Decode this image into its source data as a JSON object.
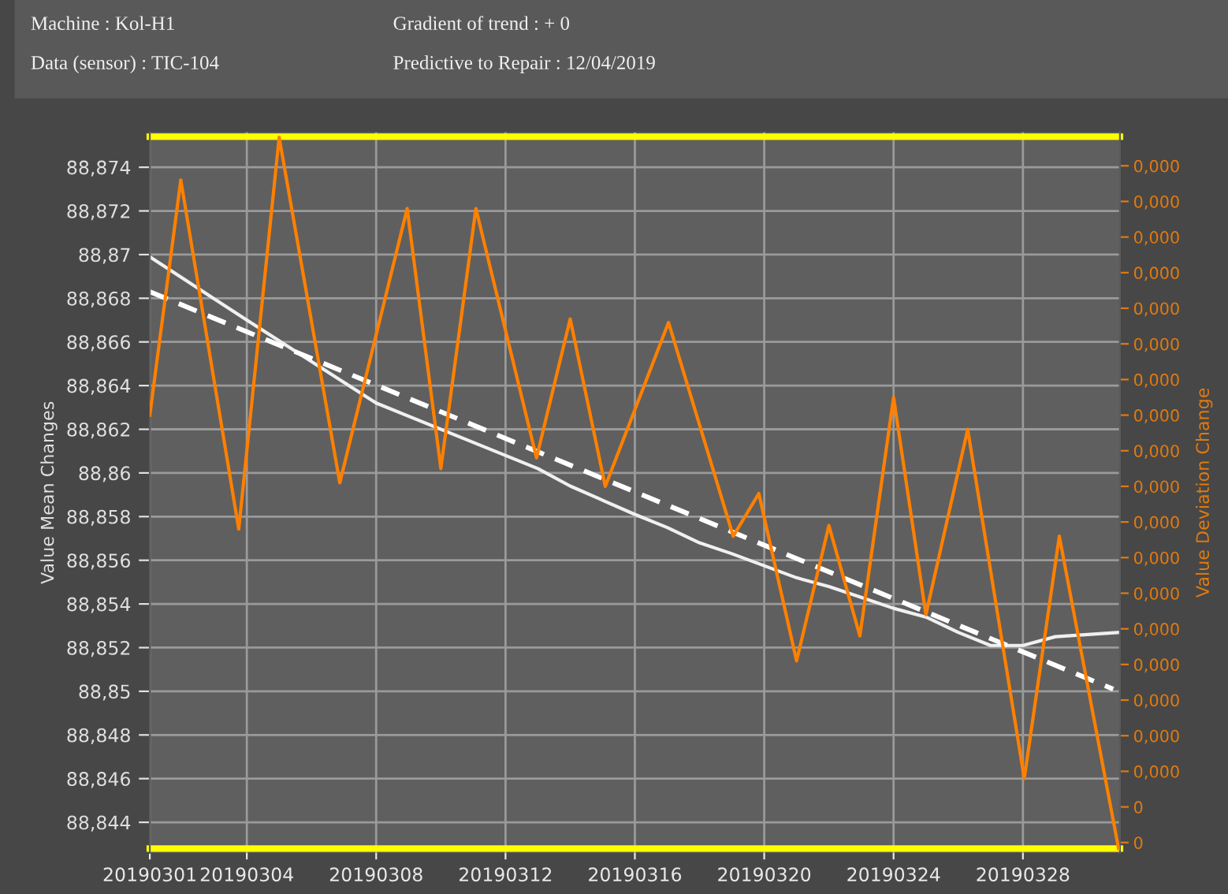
{
  "chart_data": {
    "type": "line",
    "annotations": [
      "Machine : Kol-H1",
      "Gradient of trend : + 0",
      "Data (sensor) : TIC-104",
      "Predictive to Repair : 12/04/2019"
    ],
    "ylabel": "Value Mean Changes",
    "y2label": "Value Deviation Change",
    "xlim": [
      "2019-03-01",
      "2019-03-31"
    ],
    "xticks": [
      {
        "value": "2019-03-01",
        "label": "20190301"
      },
      {
        "value": "2019-03-04",
        "label": "20190304"
      },
      {
        "value": "2019-03-08",
        "label": "20190308"
      },
      {
        "value": "2019-03-12",
        "label": "20190312"
      },
      {
        "value": "2019-03-16",
        "label": "20190316"
      },
      {
        "value": "2019-03-20",
        "label": "20190320"
      },
      {
        "value": "2019-03-24",
        "label": "20190324"
      },
      {
        "value": "2019-03-28",
        "label": "20190328"
      }
    ],
    "ylim": [
      88.8426,
      88.8756
    ],
    "yticks": [
      {
        "value": 88.844,
        "label": "88,844"
      },
      {
        "value": 88.846,
        "label": "88,846"
      },
      {
        "value": 88.848,
        "label": "88,848"
      },
      {
        "value": 88.85,
        "label": "88,85"
      },
      {
        "value": 88.852,
        "label": "88,852"
      },
      {
        "value": 88.854,
        "label": "88,854"
      },
      {
        "value": 88.856,
        "label": "88,856"
      },
      {
        "value": 88.858,
        "label": "88,858"
      },
      {
        "value": 88.86,
        "label": "88,86"
      },
      {
        "value": 88.862,
        "label": "88,862"
      },
      {
        "value": 88.864,
        "label": "88,864"
      },
      {
        "value": 88.866,
        "label": "88,866"
      },
      {
        "value": 88.868,
        "label": "88,868"
      },
      {
        "value": 88.87,
        "label": "88,87"
      },
      {
        "value": 88.872,
        "label": "88,872"
      },
      {
        "value": 88.874,
        "label": "88,874"
      }
    ],
    "y2lim": [
      -2.9e-06,
      0.0001994
    ],
    "y2ticks": [
      {
        "value": 0,
        "label": "0"
      },
      {
        "value": 1e-05,
        "label": "0"
      },
      {
        "value": 2e-05,
        "label": "0,000"
      },
      {
        "value": 3e-05,
        "label": "0,000"
      },
      {
        "value": 4e-05,
        "label": "0,000"
      },
      {
        "value": 5e-05,
        "label": "0,000"
      },
      {
        "value": 6e-05,
        "label": "0,000"
      },
      {
        "value": 7e-05,
        "label": "0,000"
      },
      {
        "value": 8e-05,
        "label": "0,000"
      },
      {
        "value": 9e-05,
        "label": "0,000"
      },
      {
        "value": 0.0001,
        "label": "0,000"
      },
      {
        "value": 0.00011,
        "label": "0,000"
      },
      {
        "value": 0.00012,
        "label": "0,000"
      },
      {
        "value": 0.00013,
        "label": "0,000"
      },
      {
        "value": 0.00014,
        "label": "0,000"
      },
      {
        "value": 0.00015,
        "label": "0,000"
      },
      {
        "value": 0.00016,
        "label": "0,000"
      },
      {
        "value": 0.00017,
        "label": "0,000"
      },
      {
        "value": 0.00018,
        "label": "0,000"
      },
      {
        "value": 0.00019,
        "label": "0,000"
      }
    ],
    "grid": true,
    "legend": false,
    "marker": "none",
    "ref_lines": [
      {
        "axis": "y",
        "value": 88.8754,
        "color": "#ffff00"
      },
      {
        "axis": "y",
        "value": 88.8428,
        "color": "#ffff00"
      }
    ],
    "series": [
      {
        "color": "#f0f0f0",
        "line_style": "solid",
        "x": [
          "2019-03-01",
          "2019-03-04",
          "2019-03-08",
          "2019-03-11",
          "2019-03-13",
          "2019-03-14",
          "2019-03-16",
          "2019-03-17",
          "2019-03-18",
          "2019-03-19",
          "2019-03-21",
          "2019-03-22",
          "2019-03-23",
          "2019-03-24",
          "2019-03-25",
          "2019-03-26",
          "2019-03-27",
          "2019-03-28",
          "2019-03-29",
          "2019-03-31"
        ],
        "values": [
          88.8699,
          88.867,
          88.8632,
          88.8614,
          88.8602,
          88.8594,
          88.8581,
          88.8575,
          88.8568,
          88.8563,
          88.8552,
          88.8548,
          88.8543,
          88.8538,
          88.8534,
          88.8527,
          88.8521,
          88.8521,
          88.8525,
          88.8527
        ]
      },
      {
        "color": "#ffffff",
        "line_style": "dashed",
        "x": [
          "2019-03-01",
          "2019-03-30T19:00"
        ],
        "values": [
          88.8683,
          88.8501
        ]
      },
      {
        "color": "#ff8000",
        "line_style": "solid",
        "axis": "y2",
        "x": [
          "2019-03-01T00:00",
          "2019-03-01T23:00",
          "2019-03-03T18:00",
          "2019-03-05T00:00",
          "2019-03-06T21:00",
          "2019-03-08T23:00",
          "2019-03-10T00:00",
          "2019-03-11T02:00",
          "2019-03-12T23:00",
          "2019-03-14T00:00",
          "2019-03-15T02:00",
          "2019-03-17T01:00",
          "2019-03-19T01:00",
          "2019-03-19T20:00",
          "2019-03-21T00:00",
          "2019-03-22T00:00",
          "2019-03-22T23:00",
          "2019-03-24T00:00",
          "2019-03-25T00:00",
          "2019-03-26T07:00",
          "2019-03-28T01:00",
          "2019-03-29T03:00",
          "2019-03-30T23:00"
        ],
        "values": [
          0.00012,
          0.000186,
          8.8e-05,
          0.000198,
          0.000101,
          0.000178,
          0.000105,
          0.000178,
          0.000108,
          0.000147,
          0.0001,
          0.000146,
          8.6e-05,
          9.8e-05,
          5.1e-05,
          8.9e-05,
          5.8e-05,
          0.000125,
          6.4e-05,
          0.000116,
          1.8e-05,
          8.6e-05,
          -1.7e-06
        ]
      }
    ]
  }
}
